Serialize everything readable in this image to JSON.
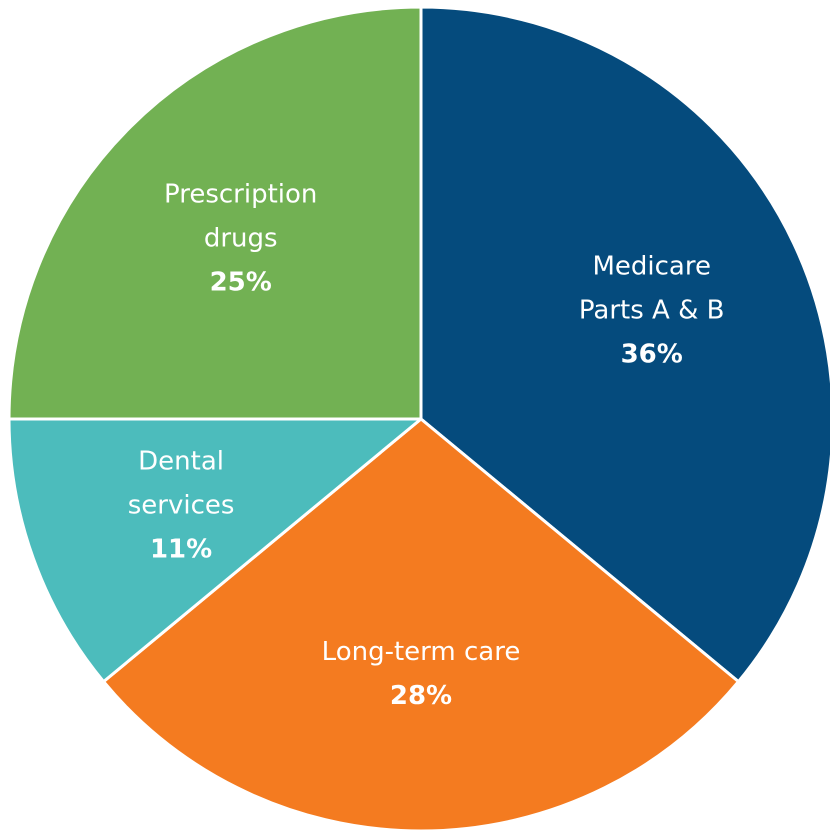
{
  "chart_data": {
    "type": "pie",
    "start_angle_deg": 0,
    "direction": "clockwise",
    "slices": [
      {
        "label_lines": [
          "Medicare",
          "Parts A & B"
        ],
        "value": 36,
        "value_label": "36%",
        "color": "#054b7d"
      },
      {
        "label_lines": [
          "Long-term care"
        ],
        "value": 28,
        "value_label": "28%",
        "color": "#f47b20"
      },
      {
        "label_lines": [
          "Dental",
          "services"
        ],
        "value": 11,
        "value_label": "11%",
        "color": "#4cbcbc"
      },
      {
        "label_lines": [
          "Prescription",
          "drugs"
        ],
        "value": 25,
        "value_label": "25%",
        "color": "#72b153"
      }
    ]
  }
}
